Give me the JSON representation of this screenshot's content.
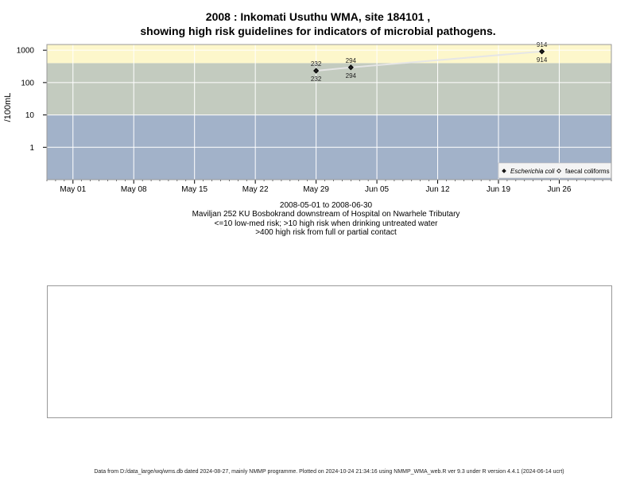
{
  "chart_data": {
    "type": "scatter",
    "title": "2008 : Inkomati Usuthu WMA, site 184101 ,",
    "subtitle": "showing high risk guidelines for indicators of microbial pathogens.",
    "xlabel_lines": [
      "2008-05-01 to 2008-06-30",
      "Maviljan 252 KU Bosbokrand downstream of Hospital on Nwarhele Tributary",
      "<=10 low-med risk; >10 high risk when drinking untreated water",
      ">400 high risk from full or partial contact"
    ],
    "ylabel": "/100mL",
    "y_scale": "log",
    "ylim": [
      0.1,
      1500
    ],
    "yticks": [
      1,
      10,
      100,
      1000
    ],
    "ytick_labels": [
      "1",
      "10",
      "100",
      "1000"
    ],
    "xlim": [
      "2008-04-28",
      "2008-07-02"
    ],
    "xticks": [
      "2008-05-01",
      "2008-05-08",
      "2008-05-15",
      "2008-05-22",
      "2008-05-29",
      "2008-06-05",
      "2008-06-12",
      "2008-06-19",
      "2008-06-26"
    ],
    "xtick_labels": [
      "May 01",
      "May 08",
      "May 15",
      "May 22",
      "May 29",
      "Jun 05",
      "Jun 12",
      "Jun 19",
      "Jun 26"
    ],
    "grid": true,
    "risk_bands": [
      {
        "from": 0.1,
        "to": 10,
        "color": "#a2b2c9"
      },
      {
        "from": 10,
        "to": 400,
        "color": "#c3cbbf"
      },
      {
        "from": 400,
        "to": 1500,
        "color": "#fdf7cb"
      }
    ],
    "series": [
      {
        "name": "Escherichia coli",
        "marker": "filled-diamond",
        "x": [
          "2008-05-29",
          "2008-06-02",
          "2008-06-24"
        ],
        "y": [
          232,
          294,
          914
        ],
        "labels": [
          "232",
          "294",
          "914"
        ]
      },
      {
        "name": "faecal coliforms",
        "marker": "open-diamond",
        "x": [
          "2008-05-29",
          "2008-06-02",
          "2008-06-24"
        ],
        "y": [
          232,
          294,
          914
        ],
        "labels": [
          "232",
          "294",
          "914"
        ]
      }
    ],
    "legend_position": "bottom-right"
  },
  "footer": "Data from D:/data_large/wq/wms.db dated 2024-08-27, mainly NMMP programme. Plotted on 2024-10-24 21:34:16 using NMMP_WMA_web.R ver 9.3 under R version 4.4.1 (2024-06-14 ucrt)"
}
